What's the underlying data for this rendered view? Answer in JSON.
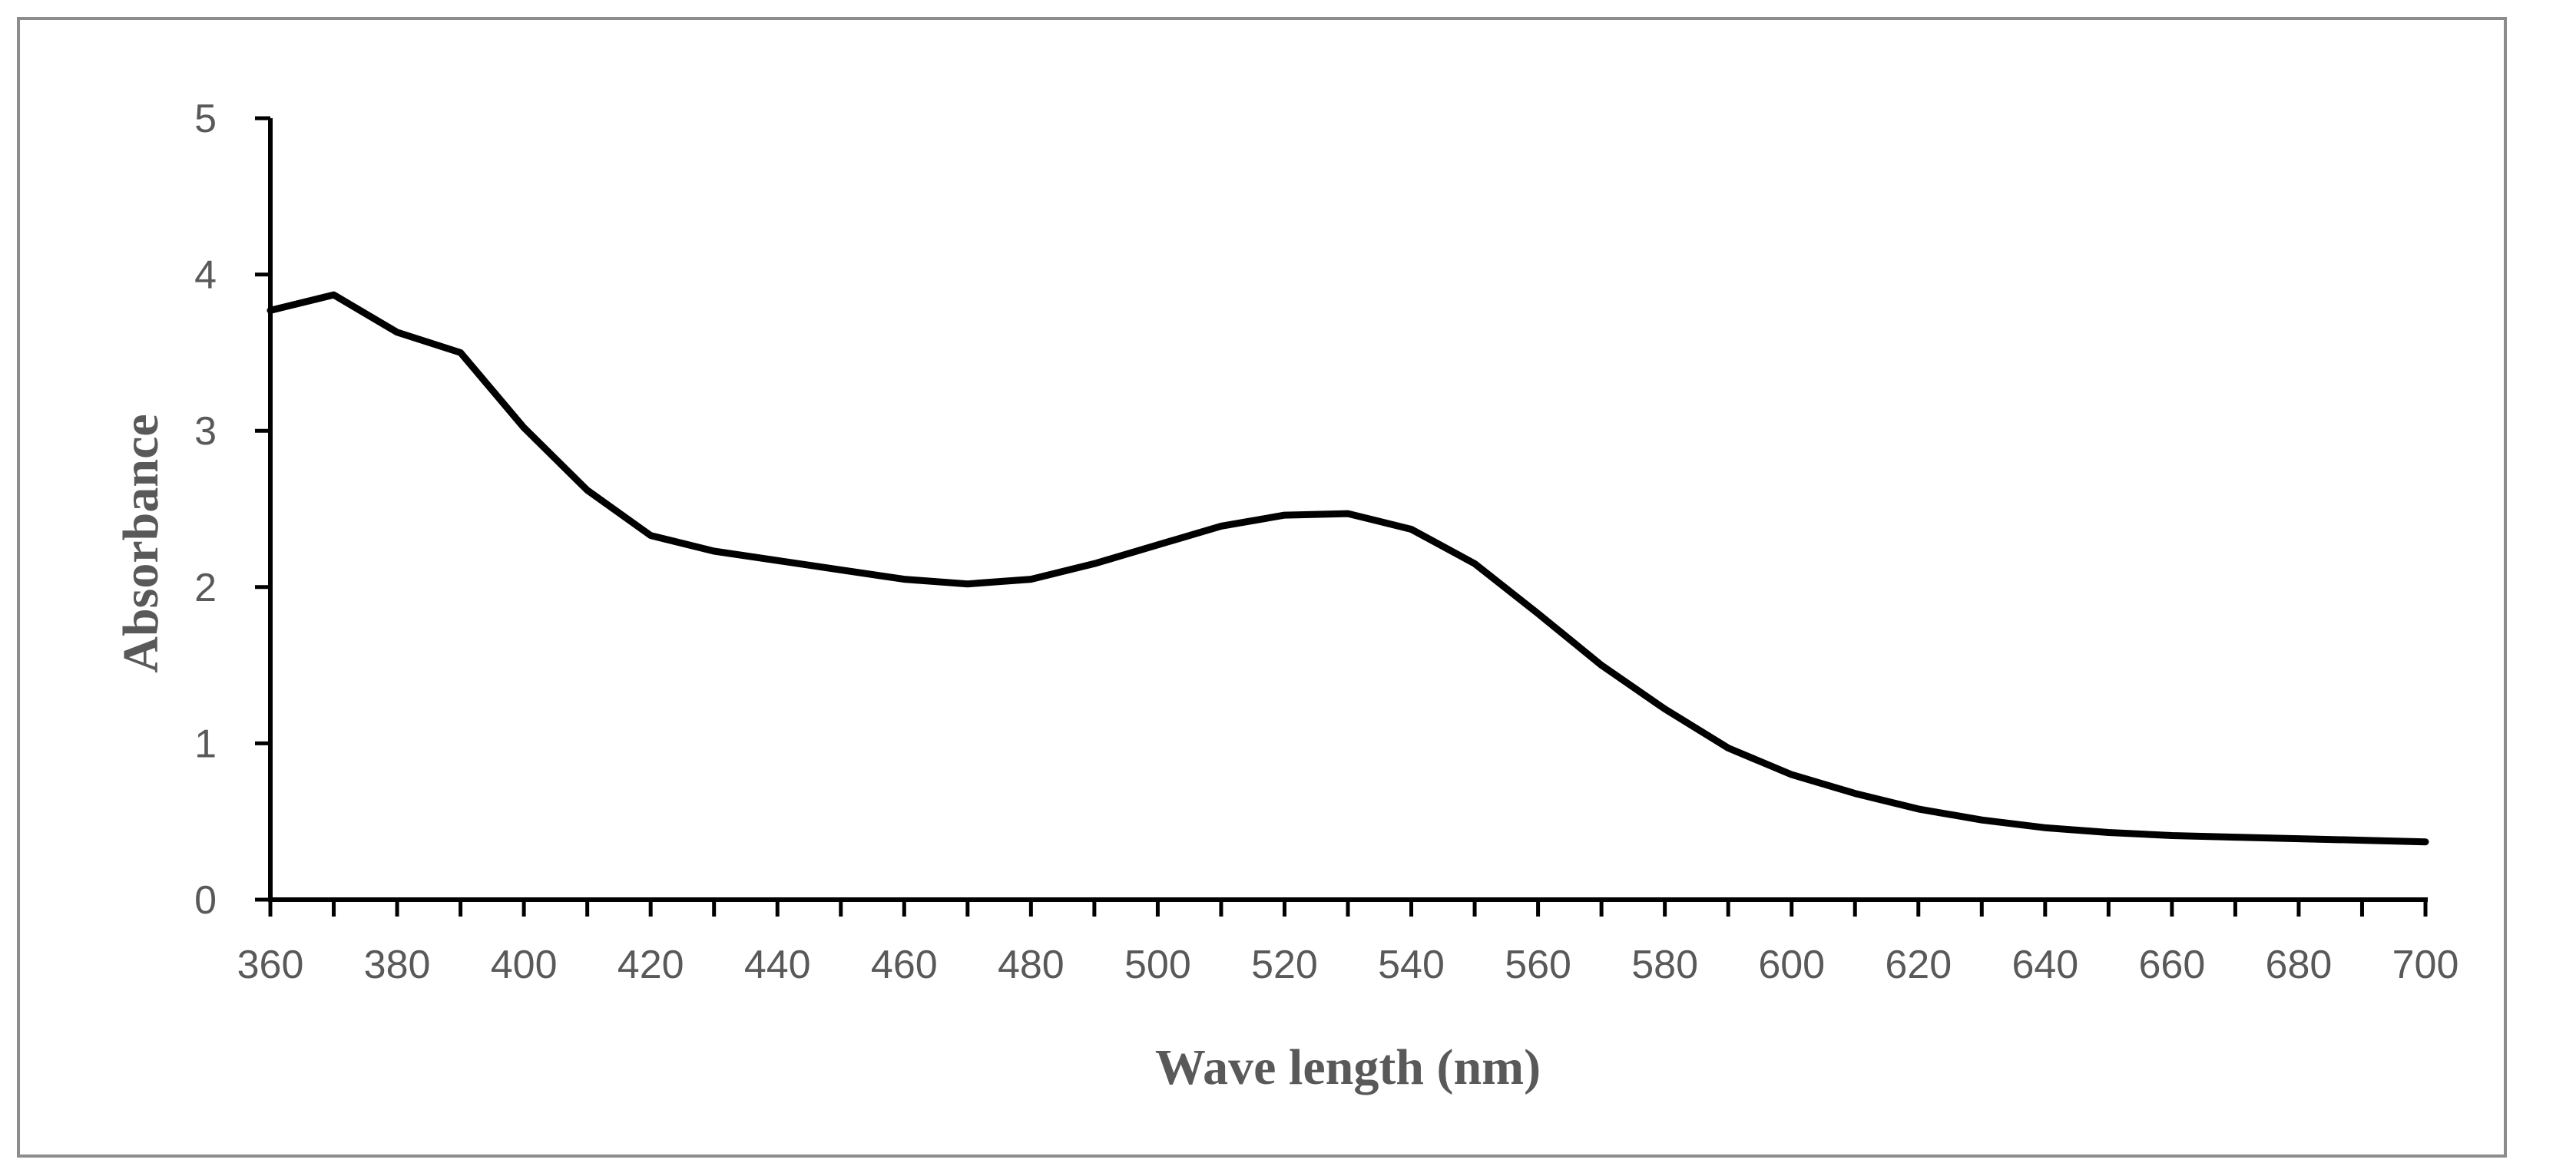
{
  "chart_data": {
    "type": "line",
    "title": "",
    "xlabel": "Wave length (nm)",
    "ylabel": "Absorbance",
    "xlim": [
      360,
      700
    ],
    "ylim": [
      0,
      5
    ],
    "grid": false,
    "legend": "none",
    "x_ticks": [
      "360",
      "380",
      "400",
      "420",
      "440",
      "460",
      "480",
      "500",
      "520",
      "540",
      "560",
      "580",
      "600",
      "620",
      "640",
      "660",
      "680",
      "700"
    ],
    "y_ticks": [
      "0",
      "1",
      "2",
      "3",
      "4",
      "5"
    ],
    "series": [
      {
        "name": "Absorbance",
        "color": "#000000",
        "x": [
          360,
          370,
          380,
          390,
          400,
          410,
          420,
          430,
          440,
          450,
          460,
          470,
          480,
          490,
          500,
          510,
          520,
          530,
          540,
          550,
          560,
          570,
          580,
          590,
          600,
          610,
          620,
          630,
          640,
          650,
          660,
          670,
          680,
          690,
          700
        ],
        "y": [
          3.77,
          3.87,
          3.63,
          3.5,
          3.02,
          2.62,
          2.33,
          2.23,
          2.17,
          2.11,
          2.05,
          2.02,
          2.05,
          2.15,
          2.27,
          2.39,
          2.46,
          2.47,
          2.37,
          2.15,
          1.83,
          1.5,
          1.22,
          0.97,
          0.8,
          0.68,
          0.58,
          0.51,
          0.46,
          0.43,
          0.41,
          0.4,
          0.39,
          0.38,
          0.37
        ]
      }
    ]
  }
}
